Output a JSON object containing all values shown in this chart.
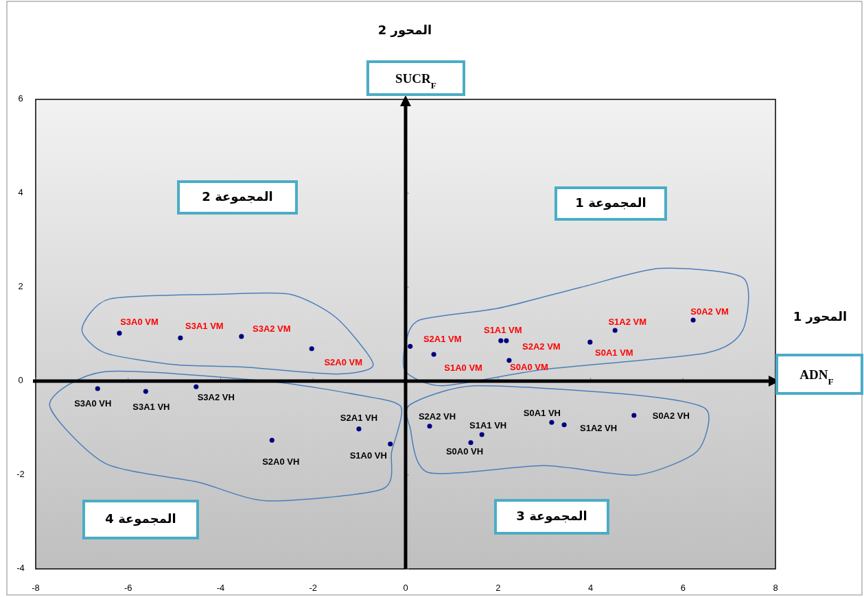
{
  "chart_data": {
    "type": "scatter",
    "xlabel": "ADN$_{F}$",
    "ylabel": "SUCR$_{F}$",
    "xlim": [
      -8,
      8
    ],
    "xticks": [
      -8,
      -6,
      -4,
      -2,
      0,
      2,
      4,
      6,
      8
    ],
    "ylim": [
      -4,
      6
    ],
    "yticks": [
      -4,
      -2,
      0,
      2,
      4,
      6
    ],
    "marker": "circle",
    "annotations": [
      "المحور 2",
      "المحور 1",
      "المجموعة 1",
      "المجموعة 2",
      "المجموعة 3",
      "المجموعة 4"
    ],
    "series": [
      {
        "color": "#000080",
        "x": [
          -6.19,
          -4.87,
          -3.55,
          -2.03,
          0.1,
          0.61,
          2.06,
          2.18,
          2.24,
          3.99,
          4.53,
          6.22
        ],
        "values": [
          1.02,
          0.92,
          0.95,
          0.69,
          0.74,
          0.57,
          0.86,
          0.86,
          0.44,
          0.83,
          1.08,
          1.3
        ],
        "value_labels": [
          "S3A0 VM",
          "S3A1 VM",
          "S3A2 VM",
          "S2A0 VM",
          "S2A1 VM",
          "S1A0 VM",
          "S1A1 VM",
          "S2A2 VM",
          "S0A0 VM",
          "S0A1 VM",
          "S1A2 VM",
          "S0A2 VM"
        ]
      },
      {
        "color": "#000080",
        "x": [
          -6.66,
          -5.62,
          -4.53,
          -2.89,
          -1.01,
          -0.33,
          0.52,
          1.65,
          1.41,
          3.16,
          3.43,
          4.94
        ],
        "values": [
          -0.16,
          -0.22,
          -0.12,
          -1.26,
          -1.02,
          -1.34,
          -0.96,
          -1.14,
          -1.31,
          -0.88,
          -0.93,
          -0.73
        ],
        "value_labels": [
          "S3A0 VH",
          "S3A1 VH",
          "S3A2 VH",
          "S2A0 VH",
          "S2A1 VH",
          "S1A0 VH",
          "S2A2 VH",
          "S1A1 VH",
          "S0A0 VH",
          "S0A1 VH",
          "S1A2 VH",
          "S0A2 VH"
        ]
      }
    ]
  }
}
